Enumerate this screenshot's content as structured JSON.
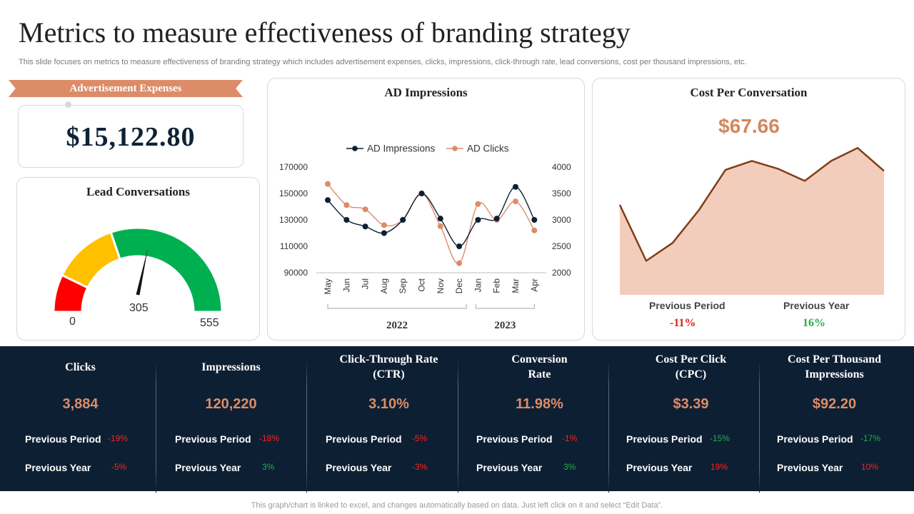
{
  "header": {
    "title": "Metrics to measure effectiveness of  branding strategy",
    "subtitle": "This slide focuses on metrics to measure effectiveness of branding strategy which includes advertisement expenses, clicks, impressions, click-through rate, lead conversions, cost per thousand impressions, etc."
  },
  "advertisement": {
    "label": "Advertisement Expenses",
    "value": "$15,122.80"
  },
  "lead_conversations": {
    "title": "Lead Conversations",
    "min_label": "0",
    "max_label": "555",
    "value_label": "305"
  },
  "impressions_card": {
    "title": "AD Impressions"
  },
  "cost_card": {
    "title": "Cost Per Conversation",
    "value": "$67.66",
    "prev_period_label": "Previous Period",
    "prev_period_change": "-11%",
    "prev_year_label": "Previous Year",
    "prev_year_change": "16%"
  },
  "kpis": [
    {
      "title": "Clicks",
      "value": "3,884",
      "prev_period_label": "Previous Period",
      "prev_period_change": "-19%",
      "prev_year_label": "Previous Year",
      "prev_year_change": "-5%"
    },
    {
      "title": "Impressions",
      "value": "120,220",
      "prev_period_label": "Previous Period",
      "prev_period_change": "-18%",
      "prev_year_label": "Previous Year",
      "prev_year_change": "3%"
    },
    {
      "title": "Click-Through Rate (CTR)",
      "value": "3.10%",
      "prev_period_label": "Previous Period",
      "prev_period_change": "-5%",
      "prev_year_label": "Previous Year",
      "prev_year_change": "-3%"
    },
    {
      "title": "Conversion Rate",
      "value": "11.98%",
      "prev_period_label": "Previous Period",
      "prev_period_change": "-1%",
      "prev_year_label": "Previous Year",
      "prev_year_change": "3%"
    },
    {
      "title": "Cost Per Click (CPC)",
      "value": "$3.39",
      "prev_period_label": "Previous Period",
      "prev_period_change": "-15%",
      "prev_year_label": "Previous Year",
      "prev_year_change": "19%"
    },
    {
      "title": "Cost Per Thousand Impressions",
      "value": "$92.20",
      "prev_period_label": "Previous Period",
      "prev_period_change": "-17%",
      "prev_year_label": "Previous Year",
      "prev_year_change": "10%"
    }
  ],
  "footer": "This graph/chart is linked to excel,  and changes automatically based on data. Just left click on it and select “Edit Data”.",
  "colors": {
    "navy": "#0d1f33",
    "accent": "#dd8c68",
    "negative": "#ff2020",
    "positive": "#21b04a",
    "gauge_red": "#ff0000",
    "gauge_yellow": "#ffc000",
    "gauge_green": "#00b050",
    "area_fill": "#f2cdbb",
    "area_line": "#843c16"
  },
  "chart_data": [
    {
      "type": "gauge",
      "title": "Lead Conversations",
      "min": 0,
      "max": 555,
      "value": 305,
      "bands": [
        {
          "color": "red",
          "to": 80
        },
        {
          "color": "yellow",
          "to": 220
        },
        {
          "color": "green",
          "to": 555
        }
      ]
    },
    {
      "type": "line",
      "title": "AD Impressions",
      "categories": [
        "May",
        "Jun",
        "Jul",
        "Aug",
        "Sep",
        "Oct",
        "Nov",
        "Dec",
        "Jan",
        "Feb",
        "Mar",
        "Apr"
      ],
      "groups": [
        {
          "label": "2022",
          "count": 8
        },
        {
          "label": "2023",
          "count": 4
        }
      ],
      "legend": [
        "AD Impressions",
        "AD Clicks"
      ],
      "legend_position": "top",
      "series": [
        {
          "name": "AD Impressions",
          "axis": "left",
          "color": "#0d1f33",
          "values": [
            145000,
            130000,
            125000,
            120000,
            130000,
            150000,
            131000,
            110000,
            130000,
            131000,
            155000,
            130000
          ]
        },
        {
          "name": "AD Clicks",
          "axis": "right",
          "color": "#dd8c68",
          "values": [
            3680,
            3280,
            3200,
            2900,
            3000,
            3500,
            2880,
            2180,
            3300,
            3000,
            3350,
            2800
          ]
        }
      ],
      "y_left": {
        "min": 90000,
        "max": 170000,
        "ticks": [
          90000,
          110000,
          130000,
          150000,
          170000
        ]
      },
      "y_right": {
        "min": 2000,
        "max": 4000,
        "ticks": [
          2000,
          2500,
          3000,
          3500,
          4000
        ]
      }
    },
    {
      "type": "area",
      "title": "Cost Per Conversation",
      "values": [
        60,
        4,
        22,
        55,
        95,
        104,
        96,
        84,
        104,
        117,
        94
      ],
      "ylim": [
        -30,
        140
      ]
    }
  ]
}
